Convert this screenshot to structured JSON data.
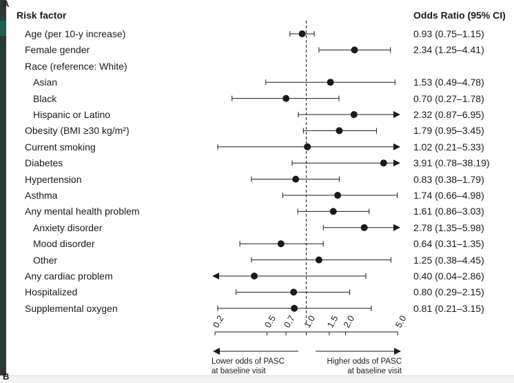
{
  "panel_labels": {
    "top": "A",
    "bottom": "B"
  },
  "chart_data": {
    "type": "forest",
    "title": "",
    "x_scale": "log",
    "xlim": [
      0.2,
      5.0
    ],
    "null_value": 1.0,
    "column_headers": {
      "label": "Risk factor",
      "estimate": "Odds Ratio (95% CI)"
    },
    "x_ticks": [
      "0.2",
      "0.5",
      "0.7",
      "1.0",
      "1.5",
      "2.0",
      "5.0"
    ],
    "x_tick_values": [
      0.2,
      0.5,
      0.7,
      1.0,
      1.5,
      2.0,
      5.0
    ],
    "direction_labels": {
      "left_line1": "Lower odds of PASC",
      "left_line2": "at baseline visit",
      "right_line1": "Higher odds of PASC",
      "right_line2": "at baseline visit"
    },
    "rows": [
      {
        "label": "Age (per 10-y increase)",
        "indent": 0,
        "or": 0.93,
        "lo": 0.75,
        "hi": 1.15,
        "text": "0.93 (0.75–1.15)",
        "arrow_left": false,
        "arrow_right": false
      },
      {
        "label": "Female gender",
        "indent": 0,
        "or": 2.34,
        "lo": 1.25,
        "hi": 4.41,
        "text": "2.34 (1.25–4.41)",
        "arrow_left": false,
        "arrow_right": false
      },
      {
        "label": "Race (reference: White)",
        "indent": 0,
        "or": null,
        "lo": null,
        "hi": null,
        "text": "",
        "arrow_left": false,
        "arrow_right": false
      },
      {
        "label": "Asian",
        "indent": 1,
        "or": 1.53,
        "lo": 0.49,
        "hi": 4.78,
        "text": "1.53 (0.49–4.78)",
        "arrow_left": false,
        "arrow_right": false
      },
      {
        "label": "Black",
        "indent": 1,
        "or": 0.7,
        "lo": 0.27,
        "hi": 1.78,
        "text": "0.70 (0.27–1.78)",
        "arrow_left": false,
        "arrow_right": false
      },
      {
        "label": "Hispanic or Latino",
        "indent": 1,
        "or": 2.32,
        "lo": 0.87,
        "hi": 6.95,
        "text": "2.32 (0.87–6.95)",
        "arrow_left": false,
        "arrow_right": true
      },
      {
        "label": "Obesity (BMI ≥30 kg/m²)",
        "indent": 0,
        "or": 1.79,
        "lo": 0.95,
        "hi": 3.45,
        "text": "1.79 (0.95–3.45)",
        "arrow_left": false,
        "arrow_right": false
      },
      {
        "label": "Current smoking",
        "indent": 0,
        "or": 1.02,
        "lo": 0.21,
        "hi": 5.33,
        "text": "1.02 (0.21–5.33)",
        "arrow_left": false,
        "arrow_right": true
      },
      {
        "label": "Diabetes",
        "indent": 0,
        "or": 3.91,
        "lo": 0.78,
        "hi": 38.19,
        "text": "3.91 (0.78–38.19)",
        "arrow_left": false,
        "arrow_right": true
      },
      {
        "label": "Hypertension",
        "indent": 0,
        "or": 0.83,
        "lo": 0.38,
        "hi": 1.79,
        "text": "0.83 (0.38–1.79)",
        "arrow_left": false,
        "arrow_right": false
      },
      {
        "label": "Asthma",
        "indent": 0,
        "or": 1.74,
        "lo": 0.66,
        "hi": 4.98,
        "text": "1.74 (0.66–4.98)",
        "arrow_left": false,
        "arrow_right": false
      },
      {
        "label": "Any mental health problem",
        "indent": 0,
        "or": 1.61,
        "lo": 0.86,
        "hi": 3.03,
        "text": "1.61 (0.86–3.03)",
        "arrow_left": false,
        "arrow_right": false
      },
      {
        "label": "Anxiety disorder",
        "indent": 1,
        "or": 2.78,
        "lo": 1.35,
        "hi": 5.98,
        "text": "2.78 (1.35–5.98)",
        "arrow_left": false,
        "arrow_right": true
      },
      {
        "label": "Mood disorder",
        "indent": 1,
        "or": 0.64,
        "lo": 0.31,
        "hi": 1.35,
        "text": "0.64 (0.31–1.35)",
        "arrow_left": false,
        "arrow_right": false
      },
      {
        "label": "Other",
        "indent": 1,
        "or": 1.25,
        "lo": 0.38,
        "hi": 4.45,
        "text": "1.25 (0.38–4.45)",
        "arrow_left": false,
        "arrow_right": false
      },
      {
        "label": "Any cardiac problem",
        "indent": 0,
        "or": 0.4,
        "lo": 0.04,
        "hi": 2.86,
        "text": "0.40 (0.04–2.86)",
        "arrow_left": true,
        "arrow_right": false
      },
      {
        "label": "Hospitalized",
        "indent": 0,
        "or": 0.8,
        "lo": 0.29,
        "hi": 2.15,
        "text": "0.80 (0.29–2.15)",
        "arrow_left": false,
        "arrow_right": false
      },
      {
        "label": "Supplemental oxygen",
        "indent": 0,
        "or": 0.81,
        "lo": 0.21,
        "hi": 3.15,
        "text": "0.81 (0.21–3.15)",
        "arrow_left": false,
        "arrow_right": false
      }
    ]
  }
}
